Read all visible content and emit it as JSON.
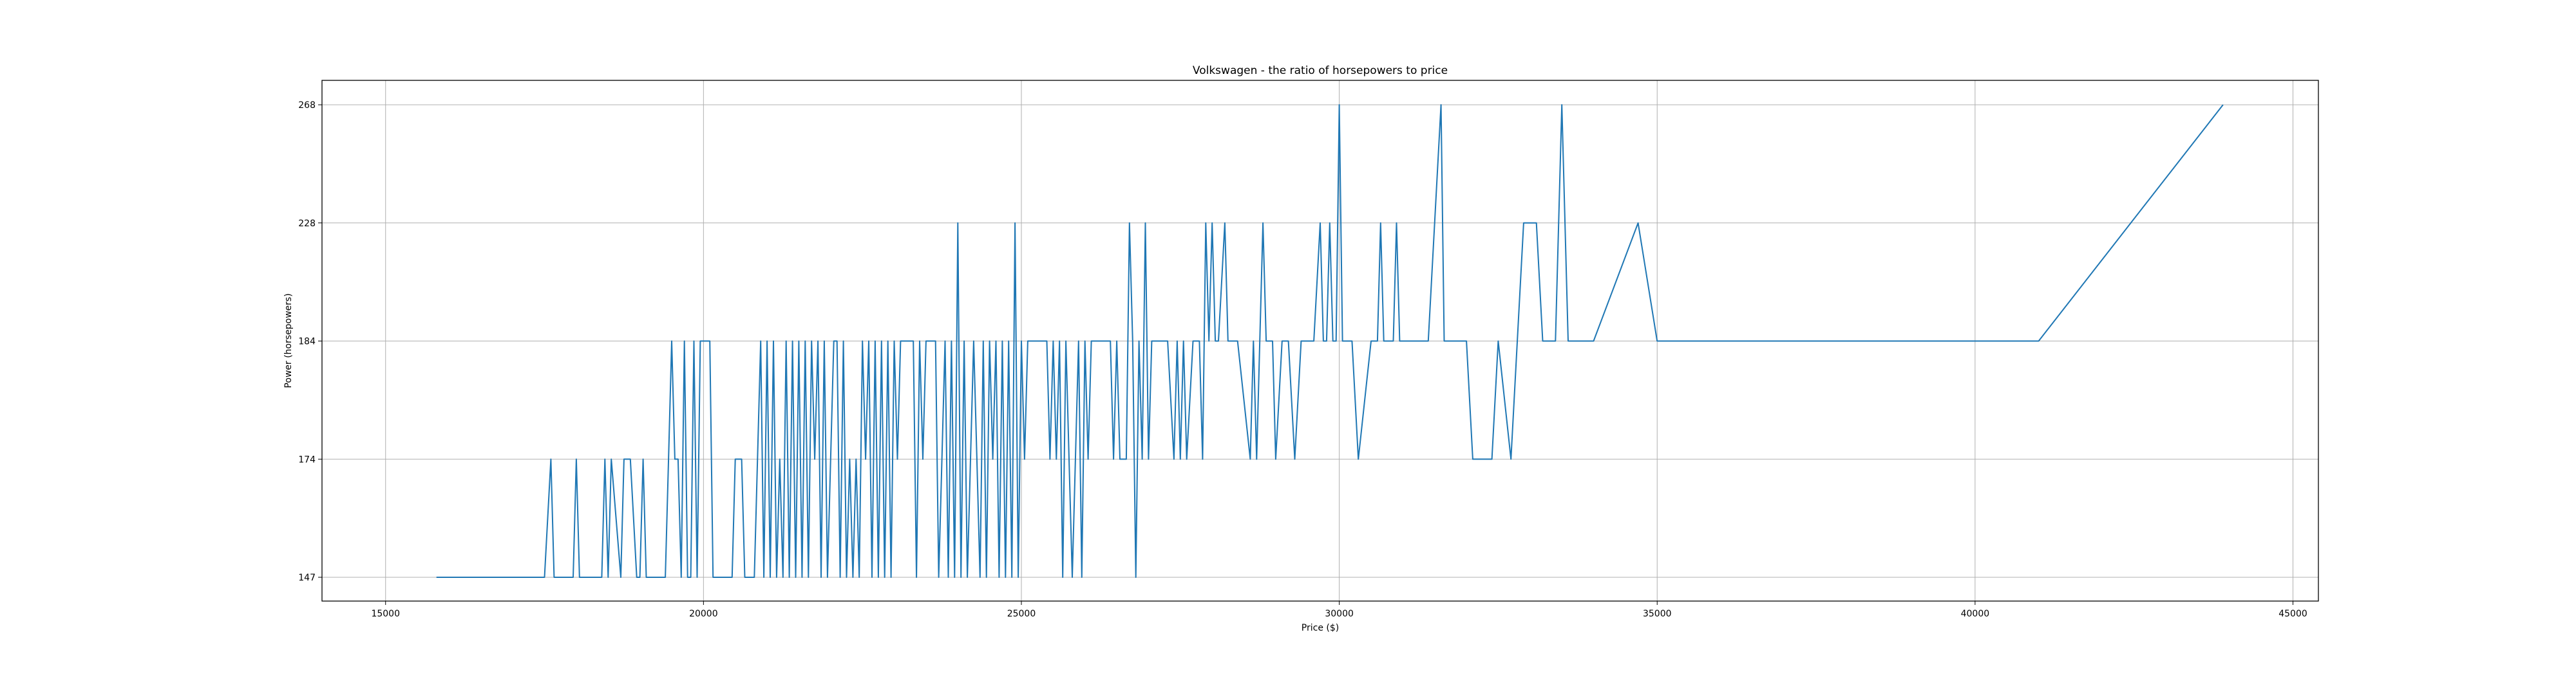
{
  "chart_data": {
    "type": "line",
    "title": "Volkswagen - the ratio of horsepowers to price",
    "xlabel": "Price ($)",
    "ylabel": "Power (horsepowers)",
    "xlim": [
      14000,
      45400
    ],
    "x_ticks": [
      15000,
      20000,
      25000,
      30000,
      35000,
      40000,
      45000
    ],
    "y_categories": [
      "147",
      "174",
      "184",
      "228",
      "268"
    ],
    "grid": true,
    "series": [
      {
        "color": "#1f77b4",
        "points": [
          [
            15800,
            "147"
          ],
          [
            17500,
            "147"
          ],
          [
            17600,
            "174"
          ],
          [
            17650,
            "147"
          ],
          [
            17950,
            "147"
          ],
          [
            18000,
            "174"
          ],
          [
            18050,
            "147"
          ],
          [
            18400,
            "147"
          ],
          [
            18450,
            "174"
          ],
          [
            18500,
            "147"
          ],
          [
            18550,
            "174"
          ],
          [
            18700,
            "147"
          ],
          [
            18750,
            "174"
          ],
          [
            18850,
            "174"
          ],
          [
            18950,
            "147"
          ],
          [
            19000,
            "147"
          ],
          [
            19050,
            "174"
          ],
          [
            19100,
            "147"
          ],
          [
            19400,
            "147"
          ],
          [
            19450,
            "174"
          ],
          [
            19500,
            "184"
          ],
          [
            19550,
            "174"
          ],
          [
            19600,
            "174"
          ],
          [
            19650,
            "147"
          ],
          [
            19700,
            "184"
          ],
          [
            19750,
            "147"
          ],
          [
            19800,
            "147"
          ],
          [
            19850,
            "184"
          ],
          [
            19900,
            "147"
          ],
          [
            19950,
            "184"
          ],
          [
            20100,
            "184"
          ],
          [
            20150,
            "147"
          ],
          [
            20450,
            "147"
          ],
          [
            20500,
            "174"
          ],
          [
            20600,
            "174"
          ],
          [
            20650,
            "147"
          ],
          [
            20800,
            "147"
          ],
          [
            20900,
            "184"
          ],
          [
            20950,
            "147"
          ],
          [
            21000,
            "184"
          ],
          [
            21050,
            "147"
          ],
          [
            21100,
            "184"
          ],
          [
            21150,
            "147"
          ],
          [
            21200,
            "174"
          ],
          [
            21250,
            "147"
          ],
          [
            21300,
            "184"
          ],
          [
            21350,
            "147"
          ],
          [
            21400,
            "184"
          ],
          [
            21450,
            "147"
          ],
          [
            21500,
            "184"
          ],
          [
            21550,
            "147"
          ],
          [
            21600,
            "184"
          ],
          [
            21650,
            "147"
          ],
          [
            21700,
            "184"
          ],
          [
            21750,
            "174"
          ],
          [
            21800,
            "184"
          ],
          [
            21850,
            "147"
          ],
          [
            21900,
            "184"
          ],
          [
            21950,
            "147"
          ],
          [
            22000,
            "174"
          ],
          [
            22050,
            "184"
          ],
          [
            22100,
            "184"
          ],
          [
            22150,
            "147"
          ],
          [
            22200,
            "184"
          ],
          [
            22250,
            "147"
          ],
          [
            22300,
            "174"
          ],
          [
            22350,
            "147"
          ],
          [
            22400,
            "174"
          ],
          [
            22450,
            "147"
          ],
          [
            22500,
            "184"
          ],
          [
            22550,
            "174"
          ],
          [
            22600,
            "184"
          ],
          [
            22650,
            "147"
          ],
          [
            22700,
            "184"
          ],
          [
            22750,
            "147"
          ],
          [
            22800,
            "184"
          ],
          [
            22850,
            "147"
          ],
          [
            22900,
            "184"
          ],
          [
            22950,
            "147"
          ],
          [
            23000,
            "184"
          ],
          [
            23050,
            "174"
          ],
          [
            23100,
            "184"
          ],
          [
            23300,
            "184"
          ],
          [
            23350,
            "147"
          ],
          [
            23400,
            "184"
          ],
          [
            23450,
            "174"
          ],
          [
            23500,
            "184"
          ],
          [
            23650,
            "184"
          ],
          [
            23700,
            "147"
          ],
          [
            23750,
            "174"
          ],
          [
            23800,
            "184"
          ],
          [
            23850,
            "147"
          ],
          [
            23900,
            "184"
          ],
          [
            23950,
            "147"
          ],
          [
            24000,
            "228"
          ],
          [
            24050,
            "147"
          ],
          [
            24100,
            "184"
          ],
          [
            24150,
            "147"
          ],
          [
            24200,
            "174"
          ],
          [
            24250,
            "184"
          ],
          [
            24300,
            "174"
          ],
          [
            24350,
            "147"
          ],
          [
            24400,
            "184"
          ],
          [
            24450,
            "147"
          ],
          [
            24500,
            "184"
          ],
          [
            24550,
            "174"
          ],
          [
            24600,
            "184"
          ],
          [
            24650,
            "147"
          ],
          [
            24700,
            "184"
          ],
          [
            24750,
            "147"
          ],
          [
            24800,
            "184"
          ],
          [
            24850,
            "147"
          ],
          [
            24900,
            "228"
          ],
          [
            24950,
            "147"
          ],
          [
            25000,
            "184"
          ],
          [
            25050,
            "174"
          ],
          [
            25100,
            "184"
          ],
          [
            25400,
            "184"
          ],
          [
            25450,
            "174"
          ],
          [
            25500,
            "184"
          ],
          [
            25550,
            "174"
          ],
          [
            25600,
            "184"
          ],
          [
            25650,
            "147"
          ],
          [
            25700,
            "184"
          ],
          [
            25750,
            "174"
          ],
          [
            25800,
            "147"
          ],
          [
            25850,
            "174"
          ],
          [
            25900,
            "184"
          ],
          [
            25950,
            "147"
          ],
          [
            26000,
            "184"
          ],
          [
            26050,
            "174"
          ],
          [
            26100,
            "184"
          ],
          [
            26200,
            "184"
          ],
          [
            26300,
            "184"
          ],
          [
            26400,
            "184"
          ],
          [
            26450,
            "174"
          ],
          [
            26500,
            "184"
          ],
          [
            26550,
            "174"
          ],
          [
            26650,
            "174"
          ],
          [
            26700,
            "228"
          ],
          [
            26750,
            "184"
          ],
          [
            26800,
            "147"
          ],
          [
            26850,
            "184"
          ],
          [
            26900,
            "174"
          ],
          [
            26950,
            "228"
          ],
          [
            27000,
            "174"
          ],
          [
            27050,
            "184"
          ],
          [
            27100,
            "184"
          ],
          [
            27200,
            "184"
          ],
          [
            27300,
            "184"
          ],
          [
            27400,
            "174"
          ],
          [
            27450,
            "184"
          ],
          [
            27500,
            "174"
          ],
          [
            27550,
            "184"
          ],
          [
            27600,
            "174"
          ],
          [
            27700,
            "184"
          ],
          [
            27800,
            "184"
          ],
          [
            27850,
            "174"
          ],
          [
            27900,
            "228"
          ],
          [
            27950,
            "184"
          ],
          [
            28000,
            "228"
          ],
          [
            28050,
            "184"
          ],
          [
            28100,
            "184"
          ],
          [
            28200,
            "228"
          ],
          [
            28250,
            "184"
          ],
          [
            28400,
            "184"
          ],
          [
            28600,
            "174"
          ],
          [
            28650,
            "184"
          ],
          [
            28700,
            "174"
          ],
          [
            28800,
            "228"
          ],
          [
            28850,
            "184"
          ],
          [
            28950,
            "184"
          ],
          [
            29000,
            "174"
          ],
          [
            29100,
            "184"
          ],
          [
            29200,
            "184"
          ],
          [
            29300,
            "174"
          ],
          [
            29400,
            "184"
          ],
          [
            29600,
            "184"
          ],
          [
            29700,
            "228"
          ],
          [
            29750,
            "184"
          ],
          [
            29800,
            "184"
          ],
          [
            29850,
            "228"
          ],
          [
            29900,
            "184"
          ],
          [
            29950,
            "184"
          ],
          [
            30000,
            "268"
          ],
          [
            30050,
            "184"
          ],
          [
            30200,
            "184"
          ],
          [
            30300,
            "174"
          ],
          [
            30500,
            "184"
          ],
          [
            30600,
            "184"
          ],
          [
            30650,
            "228"
          ],
          [
            30700,
            "184"
          ],
          [
            30850,
            "184"
          ],
          [
            30900,
            "228"
          ],
          [
            30950,
            "184"
          ],
          [
            31400,
            "184"
          ],
          [
            31500,
            "228"
          ],
          [
            31600,
            "268"
          ],
          [
            31650,
            "184"
          ],
          [
            31700,
            "184"
          ],
          [
            32000,
            "184"
          ],
          [
            32100,
            "174"
          ],
          [
            32400,
            "174"
          ],
          [
            32500,
            "184"
          ],
          [
            32700,
            "174"
          ],
          [
            32900,
            "228"
          ],
          [
            33100,
            "228"
          ],
          [
            33200,
            "184"
          ],
          [
            33400,
            "184"
          ],
          [
            33500,
            "268"
          ],
          [
            33600,
            "184"
          ],
          [
            33800,
            "184"
          ],
          [
            33900,
            "184"
          ],
          [
            34000,
            "184"
          ],
          [
            34700,
            "228"
          ],
          [
            35000,
            "184"
          ],
          [
            41000,
            "184"
          ],
          [
            43900,
            "268"
          ]
        ]
      }
    ]
  }
}
